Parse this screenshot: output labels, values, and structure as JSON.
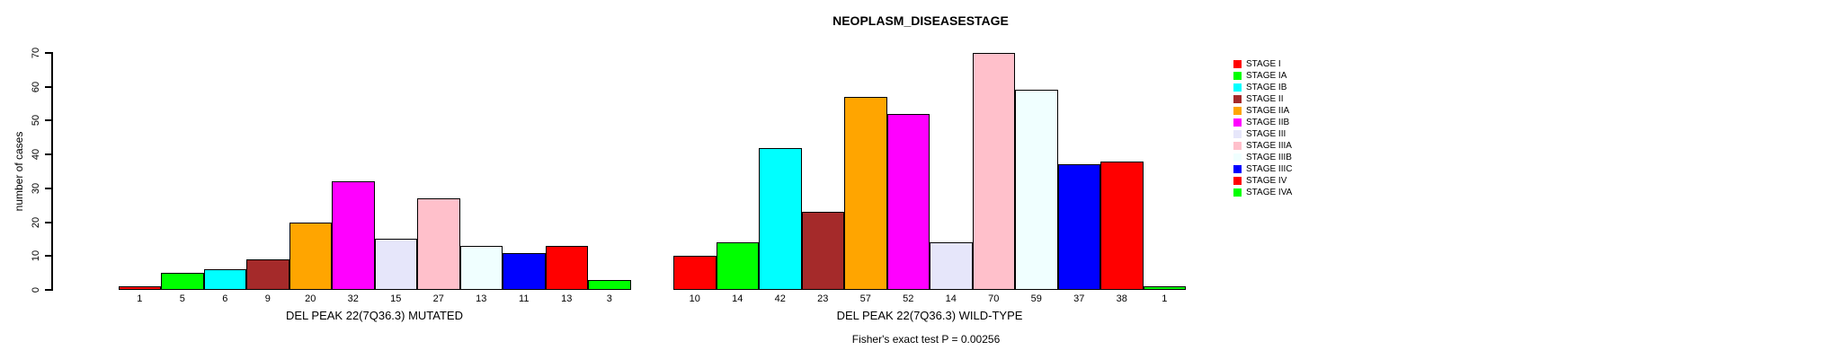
{
  "title": "NEOPLASM_DISEASESTAGE",
  "annotation": "Fisher's exact test P = 0.00256",
  "y_axis_label": "number of cases",
  "chart_data": {
    "type": "bar",
    "title": "NEOPLASM_DISEASESTAGE",
    "xlabel": "",
    "ylabel": "number of cases",
    "ylim": [
      0,
      70
    ],
    "yticks": [
      0,
      10,
      20,
      30,
      40,
      50,
      60,
      70
    ],
    "grid": false,
    "legend_position": "right",
    "annotation": "Fisher's exact test P = 0.00256",
    "categories": [
      "STAGE I",
      "STAGE IA",
      "STAGE IB",
      "STAGE II",
      "STAGE IIA",
      "STAGE IIB",
      "STAGE III",
      "STAGE IIIA",
      "STAGE IIIB",
      "STAGE IIIC",
      "STAGE IV",
      "STAGE IVA"
    ],
    "colors": [
      "#FF0000",
      "#00FF00",
      "#00FFFF",
      "#A52A2A",
      "#FFA500",
      "#FF00FF",
      "#E6E6FA",
      "#FFC0CB",
      "#F0FFFF",
      "#0000FF",
      "#FF0000",
      "#00FF00"
    ],
    "series": [
      {
        "name": "DEL PEAK 22(7Q36.3) MUTATED",
        "values": [
          1,
          5,
          6,
          9,
          20,
          32,
          15,
          27,
          13,
          11,
          13,
          3
        ]
      },
      {
        "name": "DEL PEAK 22(7Q36.3) WILD-TYPE",
        "values": [
          10,
          14,
          42,
          23,
          57,
          52,
          14,
          70,
          59,
          37,
          38,
          1
        ]
      }
    ]
  }
}
